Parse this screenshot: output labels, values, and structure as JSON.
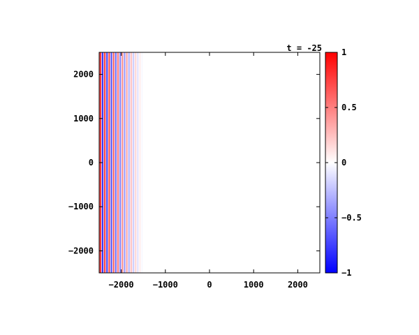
{
  "chart_data": {
    "type": "heatmap",
    "title": "t = -25",
    "xlim": [
      -2500,
      2500
    ],
    "ylim": [
      -2500,
      2500
    ],
    "x_ticks": [
      -2000,
      -1000,
      0,
      1000,
      2000
    ],
    "y_ticks": [
      -2000,
      -1000,
      0,
      1000,
      2000
    ],
    "x_tick_labels": [
      "−2000",
      "−1000",
      "0",
      "1000",
      "2000"
    ],
    "y_tick_labels": [
      "−2000",
      "−1000",
      "0",
      "1000",
      "2000"
    ],
    "colorbar": {
      "range": [
        -1,
        1
      ],
      "ticks": [
        1,
        0.5,
        0,
        -0.5,
        -1
      ],
      "tick_labels": [
        "1",
        "0.5",
        "0",
        "−0.5",
        "−1"
      ],
      "colors": {
        "min": "#0000ff",
        "mid": "#ffffff",
        "max": "#ff0000"
      }
    },
    "stripes": {
      "orientation": "vertical",
      "x_start": -2500,
      "x_end": -1500,
      "wavelength": 100,
      "amplitude_at_start": 1.0,
      "amplitude_at_end": 0.0
    }
  }
}
